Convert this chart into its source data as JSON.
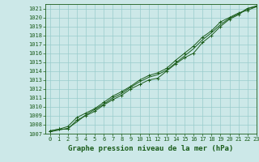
{
  "title": "Graphe pression niveau de la mer (hPa)",
  "bg_color": "#cce8e8",
  "grid_color": "#99cccc",
  "line_color": "#1a5c1a",
  "marker_color": "#1a5c1a",
  "xlim": [
    -0.5,
    23
  ],
  "ylim": [
    1007,
    1021.5
  ],
  "yticks": [
    1007,
    1008,
    1009,
    1010,
    1011,
    1012,
    1013,
    1014,
    1015,
    1016,
    1017,
    1018,
    1019,
    1020,
    1021
  ],
  "xticks": [
    0,
    1,
    2,
    3,
    4,
    5,
    6,
    7,
    8,
    9,
    10,
    11,
    12,
    13,
    14,
    15,
    16,
    17,
    18,
    19,
    20,
    21,
    22,
    23
  ],
  "line1_x": [
    0,
    1,
    2,
    3,
    4,
    5,
    6,
    7,
    8,
    9,
    10,
    11,
    12,
    13,
    14,
    15,
    16,
    17,
    18,
    19,
    20,
    21,
    22,
    23
  ],
  "line1_y": [
    1007.3,
    1007.5,
    1007.5,
    1008.5,
    1009.0,
    1009.5,
    1010.2,
    1010.8,
    1011.3,
    1012.0,
    1012.5,
    1013.0,
    1013.2,
    1014.0,
    1014.8,
    1015.5,
    1016.0,
    1017.2,
    1018.0,
    1019.0,
    1019.8,
    1020.3,
    1021.0,
    1021.2
  ],
  "line2_x": [
    0,
    1,
    2,
    3,
    4,
    5,
    6,
    7,
    8,
    9,
    10,
    11,
    12,
    13,
    14,
    15,
    16,
    17,
    18,
    19,
    20,
    21,
    22,
    23
  ],
  "line2_y": [
    1007.3,
    1007.5,
    1007.8,
    1008.8,
    1009.3,
    1009.8,
    1010.5,
    1011.2,
    1011.7,
    1012.3,
    1013.0,
    1013.5,
    1013.8,
    1014.3,
    1015.2,
    1016.0,
    1016.8,
    1017.8,
    1018.5,
    1019.5,
    1020.0,
    1020.5,
    1020.8,
    1021.2
  ],
  "line3_x": [
    0,
    1,
    2,
    3,
    4,
    5,
    6,
    7,
    8,
    9,
    10,
    11,
    12,
    13,
    14,
    15,
    16,
    17,
    18,
    19,
    20,
    21,
    22,
    23
  ],
  "line3_y": [
    1007.2,
    1007.4,
    1007.6,
    1008.3,
    1009.1,
    1009.7,
    1010.3,
    1011.0,
    1011.5,
    1012.2,
    1012.8,
    1013.3,
    1013.6,
    1014.1,
    1014.9,
    1015.7,
    1016.5,
    1017.5,
    1018.3,
    1019.2,
    1019.9,
    1020.4,
    1021.0,
    1021.3
  ],
  "title_fontsize": 6.5,
  "tick_fontsize": 5.0
}
